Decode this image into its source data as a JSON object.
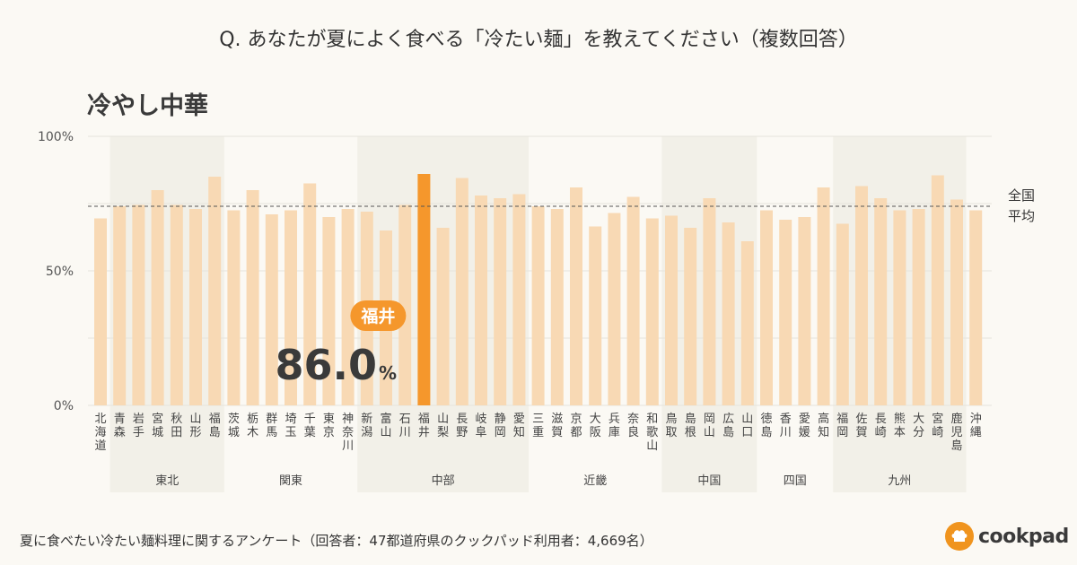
{
  "question": "Q. あなたが夏によく食べる「冷たい麺」を教えてください（複数回答）",
  "footer": {
    "note": "夏に食べたい冷たい麺料理に関するアンケート（回答者：47都道府県のクックパッド利用者：4,669名）",
    "brand": "cookpad"
  },
  "colors": {
    "bar": "#f8d9b4",
    "highlight": "#f5972c",
    "band": "#f2f0e8",
    "average_line": "#555555"
  },
  "chart_data": {
    "type": "bar",
    "title": "冷やし中華",
    "ylim": [
      0,
      100
    ],
    "yticks": [
      "0%",
      "50%",
      "100%"
    ],
    "grid": true,
    "average": {
      "label_line1": "全国",
      "label_line2": "平均",
      "value": 74
    },
    "highlight": {
      "index": 17,
      "name": "福井",
      "value": "86.0",
      "unit": "%"
    },
    "regions": [
      {
        "name": "東北",
        "start": 1,
        "end": 6,
        "shaded": true
      },
      {
        "name": "関東",
        "start": 7,
        "end": 13,
        "shaded": false
      },
      {
        "name": "中部",
        "start": 14,
        "end": 22,
        "shaded": true
      },
      {
        "name": "近畿",
        "start": 23,
        "end": 29,
        "shaded": false
      },
      {
        "name": "中国",
        "start": 30,
        "end": 34,
        "shaded": true
      },
      {
        "name": "四国",
        "start": 35,
        "end": 38,
        "shaded": false
      },
      {
        "name": "九州",
        "start": 39,
        "end": 45,
        "shaded": true
      }
    ],
    "categories": [
      "北海道",
      "青森",
      "岩手",
      "宮城",
      "秋田",
      "山形",
      "福島",
      "茨城",
      "栃木",
      "群馬",
      "埼玉",
      "千葉",
      "東京",
      "神奈川",
      "新潟",
      "富山",
      "石川",
      "福井",
      "山梨",
      "長野",
      "岐阜",
      "静岡",
      "愛知",
      "三重",
      "滋賀",
      "京都",
      "大阪",
      "兵庫",
      "奈良",
      "和歌山",
      "鳥取",
      "島根",
      "岡山",
      "広島",
      "山口",
      "徳島",
      "香川",
      "愛媛",
      "高知",
      "福岡",
      "佐賀",
      "長崎",
      "熊本",
      "大分",
      "宮崎",
      "鹿児島",
      "沖縄"
    ],
    "values": [
      69.5,
      74,
      74.5,
      80,
      74.5,
      73,
      85,
      72.5,
      80,
      71,
      72.5,
      82.5,
      70,
      73,
      72,
      65,
      74.5,
      86.0,
      66,
      84.5,
      78,
      77,
      78.5,
      74,
      73,
      81,
      66.5,
      71.5,
      77.5,
      69.5,
      70.5,
      66,
      77,
      68,
      61,
      72.5,
      69,
      70,
      81,
      67.5,
      81.5,
      77,
      72.5,
      73,
      85.5,
      76.5,
      72.5
    ]
  }
}
